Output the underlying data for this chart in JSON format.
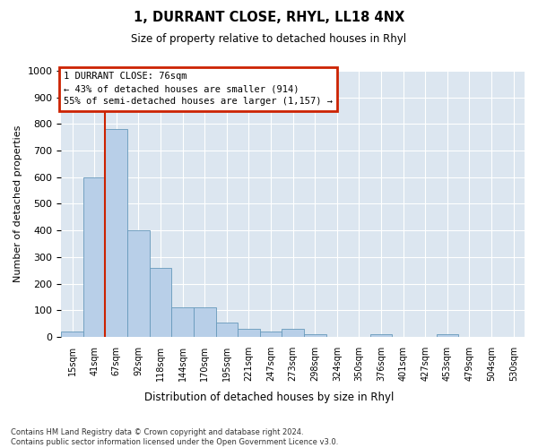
{
  "title": "1, DURRANT CLOSE, RHYL, LL18 4NX",
  "subtitle": "Size of property relative to detached houses in Rhyl",
  "xlabel": "Distribution of detached houses by size in Rhyl",
  "ylabel": "Number of detached properties",
  "footnote": "Contains HM Land Registry data © Crown copyright and database right 2024.\nContains public sector information licensed under the Open Government Licence v3.0.",
  "bin_labels": [
    "15sqm",
    "41sqm",
    "67sqm",
    "92sqm",
    "118sqm",
    "144sqm",
    "170sqm",
    "195sqm",
    "221sqm",
    "247sqm",
    "273sqm",
    "298sqm",
    "324sqm",
    "350sqm",
    "376sqm",
    "401sqm",
    "427sqm",
    "453sqm",
    "479sqm",
    "504sqm",
    "530sqm"
  ],
  "bar_values": [
    20,
    600,
    780,
    400,
    260,
    110,
    110,
    55,
    30,
    20,
    30,
    10,
    0,
    0,
    10,
    0,
    0,
    10,
    0,
    0,
    0
  ],
  "bar_color": "#b8cfe8",
  "bar_edge_color": "#6699bb",
  "vline_color": "#cc2200",
  "ylim": [
    0,
    1000
  ],
  "yticks": [
    0,
    100,
    200,
    300,
    400,
    500,
    600,
    700,
    800,
    900,
    1000
  ],
  "annotation_title": "1 DURRANT CLOSE: 76sqm",
  "annotation_line1": "← 43% of detached houses are smaller (914)",
  "annotation_line2": "55% of semi-detached houses are larger (1,157) →",
  "annotation_box_edge": "#cc2200",
  "background_color": "#dce6f0",
  "grid_color": "#ffffff"
}
